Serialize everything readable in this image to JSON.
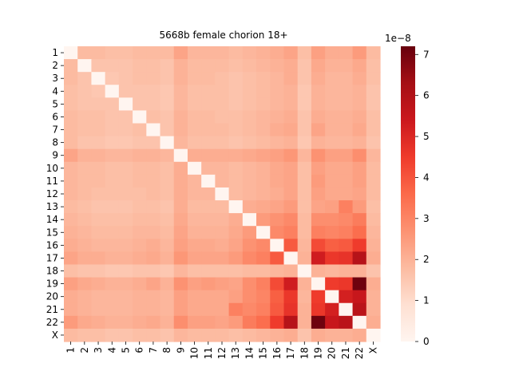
{
  "chart_data": {
    "type": "heatmap",
    "title": "5668b female chorion 18+",
    "xlabel": "",
    "ylabel": "",
    "labels": [
      "1",
      "2",
      "3",
      "4",
      "5",
      "6",
      "7",
      "8",
      "9",
      "10",
      "11",
      "12",
      "13",
      "14",
      "15",
      "16",
      "17",
      "18",
      "19",
      "20",
      "21",
      "22",
      "X"
    ],
    "values": [
      [
        0.0,
        1.8,
        1.8,
        1.7,
        1.7,
        1.8,
        1.8,
        1.8,
        2.3,
        1.9,
        1.9,
        1.9,
        1.8,
        1.9,
        2.0,
        2.1,
        2.3,
        1.7,
        2.4,
        2.1,
        2.1,
        2.5,
        1.8
      ],
      [
        1.8,
        0.0,
        1.6,
        1.6,
        1.6,
        1.7,
        1.7,
        1.6,
        2.0,
        1.8,
        1.8,
        1.8,
        1.7,
        1.8,
        1.9,
        2.0,
        2.1,
        1.6,
        2.2,
        2.0,
        2.0,
        2.2,
        1.7
      ],
      [
        1.8,
        1.6,
        0.0,
        1.5,
        1.6,
        1.7,
        1.7,
        1.6,
        2.0,
        1.8,
        1.8,
        1.7,
        1.6,
        1.7,
        1.8,
        1.9,
        2.1,
        1.6,
        2.1,
        1.9,
        1.9,
        2.1,
        1.7
      ],
      [
        1.7,
        1.6,
        1.5,
        0.0,
        1.6,
        1.6,
        1.6,
        1.5,
        1.9,
        1.7,
        1.7,
        1.7,
        1.6,
        1.7,
        1.8,
        1.9,
        2.0,
        1.5,
        2.0,
        1.9,
        1.9,
        2.0,
        1.6
      ],
      [
        1.7,
        1.6,
        1.6,
        1.6,
        0.0,
        1.6,
        1.6,
        1.5,
        1.9,
        1.7,
        1.7,
        1.7,
        1.6,
        1.7,
        1.8,
        1.9,
        2.0,
        1.5,
        2.0,
        1.9,
        1.9,
        2.0,
        1.6
      ],
      [
        1.8,
        1.7,
        1.7,
        1.6,
        1.6,
        0.0,
        1.7,
        1.6,
        2.0,
        1.8,
        1.8,
        1.7,
        1.7,
        1.8,
        1.9,
        2.0,
        2.1,
        1.6,
        2.1,
        2.0,
        2.0,
        2.1,
        1.7
      ],
      [
        1.8,
        1.7,
        1.7,
        1.6,
        1.6,
        1.7,
        0.0,
        1.6,
        2.0,
        1.8,
        1.8,
        1.8,
        1.7,
        1.8,
        1.9,
        2.1,
        2.2,
        1.6,
        2.3,
        2.0,
        2.0,
        2.2,
        1.7
      ],
      [
        1.8,
        1.6,
        1.6,
        1.5,
        1.5,
        1.6,
        1.6,
        0.0,
        1.9,
        1.7,
        1.7,
        1.7,
        1.6,
        1.7,
        1.8,
        1.9,
        2.0,
        1.5,
        2.0,
        1.9,
        1.9,
        2.0,
        1.6
      ],
      [
        2.3,
        2.0,
        2.0,
        1.9,
        1.9,
        2.0,
        2.0,
        1.9,
        0.0,
        2.1,
        2.1,
        2.1,
        2.1,
        2.2,
        2.3,
        2.4,
        2.6,
        1.9,
        2.7,
        2.4,
        2.4,
        2.8,
        1.9
      ],
      [
        1.9,
        1.8,
        1.8,
        1.7,
        1.7,
        1.8,
        1.8,
        1.7,
        2.1,
        0.0,
        1.9,
        1.9,
        1.8,
        1.9,
        2.0,
        2.2,
        2.3,
        1.7,
        2.4,
        2.2,
        2.2,
        2.4,
        1.8
      ],
      [
        1.9,
        1.8,
        1.8,
        1.7,
        1.7,
        1.8,
        1.8,
        1.7,
        2.1,
        1.9,
        0.0,
        1.9,
        1.8,
        1.9,
        2.0,
        2.2,
        2.3,
        1.7,
        2.5,
        2.2,
        2.2,
        2.4,
        1.8
      ],
      [
        1.9,
        1.8,
        1.7,
        1.7,
        1.7,
        1.7,
        1.8,
        1.7,
        2.1,
        1.9,
        1.9,
        0.0,
        1.8,
        1.9,
        2.0,
        2.1,
        2.3,
        1.7,
        2.4,
        2.2,
        2.2,
        2.3,
        1.8
      ],
      [
        1.8,
        1.7,
        1.6,
        1.6,
        1.6,
        1.7,
        1.7,
        1.6,
        2.1,
        1.8,
        1.8,
        1.8,
        0.0,
        2.1,
        2.2,
        2.3,
        2.5,
        1.7,
        2.3,
        2.4,
        3.1,
        2.5,
        1.7
      ],
      [
        1.9,
        1.8,
        1.7,
        1.7,
        1.7,
        1.8,
        1.8,
        1.7,
        2.2,
        1.9,
        1.9,
        1.9,
        2.1,
        0.0,
        2.5,
        2.7,
        2.9,
        1.8,
        2.8,
        2.8,
        2.9,
        3.2,
        1.8
      ],
      [
        2.0,
        1.9,
        1.8,
        1.8,
        1.8,
        1.9,
        1.9,
        1.8,
        2.3,
        2.0,
        2.0,
        2.0,
        2.2,
        2.5,
        0.0,
        2.9,
        3.1,
        1.8,
        3.1,
        3.0,
        3.1,
        3.5,
        1.9
      ],
      [
        2.1,
        2.0,
        1.9,
        1.9,
        1.9,
        2.0,
        2.1,
        1.9,
        2.4,
        2.2,
        2.2,
        2.1,
        2.3,
        2.7,
        2.9,
        0.0,
        3.9,
        1.9,
        4.2,
        3.8,
        3.9,
        4.5,
        2.0
      ],
      [
        2.3,
        2.1,
        2.1,
        2.0,
        2.0,
        2.1,
        2.2,
        2.0,
        2.6,
        2.3,
        2.3,
        2.3,
        2.5,
        2.9,
        3.1,
        3.9,
        0.0,
        2.0,
        5.3,
        4.6,
        4.7,
        5.9,
        2.1
      ],
      [
        1.7,
        1.6,
        1.6,
        1.5,
        1.5,
        1.6,
        1.6,
        1.5,
        1.9,
        1.7,
        1.7,
        1.7,
        1.7,
        1.8,
        1.8,
        1.9,
        2.0,
        0.0,
        2.0,
        1.9,
        2.0,
        2.0,
        1.6
      ],
      [
        2.4,
        2.2,
        2.1,
        2.0,
        2.0,
        2.1,
        2.3,
        2.0,
        2.7,
        2.4,
        2.5,
        2.4,
        2.3,
        2.8,
        3.1,
        4.2,
        5.3,
        2.0,
        0.0,
        4.5,
        4.6,
        7.1,
        2.1
      ],
      [
        2.1,
        2.0,
        1.9,
        1.9,
        1.9,
        2.0,
        2.0,
        1.9,
        2.4,
        2.2,
        2.2,
        2.2,
        2.4,
        2.8,
        3.0,
        3.8,
        4.6,
        1.9,
        4.5,
        0.0,
        5.2,
        5.5,
        2.0
      ],
      [
        2.1,
        2.0,
        1.9,
        1.9,
        1.9,
        2.0,
        2.0,
        1.9,
        2.4,
        2.2,
        2.2,
        2.2,
        3.1,
        2.9,
        3.1,
        3.9,
        4.7,
        2.0,
        4.6,
        5.2,
        0.0,
        5.8,
        2.0
      ],
      [
        2.5,
        2.2,
        2.1,
        2.0,
        2.0,
        2.1,
        2.2,
        2.0,
        2.8,
        2.4,
        2.4,
        2.3,
        2.5,
        3.2,
        3.5,
        4.5,
        5.9,
        2.0,
        7.1,
        5.5,
        5.8,
        0.0,
        2.1
      ],
      [
        1.8,
        1.7,
        1.7,
        1.6,
        1.6,
        1.7,
        1.7,
        1.6,
        1.9,
        1.8,
        1.8,
        1.8,
        1.7,
        1.8,
        1.9,
        2.0,
        2.1,
        1.6,
        2.1,
        2.0,
        2.0,
        2.1,
        0.0
      ]
    ],
    "value_scale": "1e-8",
    "colorbar": {
      "vmin": 0,
      "vmax": 7.2,
      "ticks": [
        0,
        1,
        2,
        3,
        4,
        5,
        6,
        7
      ],
      "offset_label": "1e−8",
      "colormap": "Reds",
      "colors": [
        "#fff5f0",
        "#fee0d2",
        "#fcbba1",
        "#fc9272",
        "#fb6a4a",
        "#ef3b2c",
        "#cb181d",
        "#a50f15",
        "#67000d"
      ]
    }
  }
}
